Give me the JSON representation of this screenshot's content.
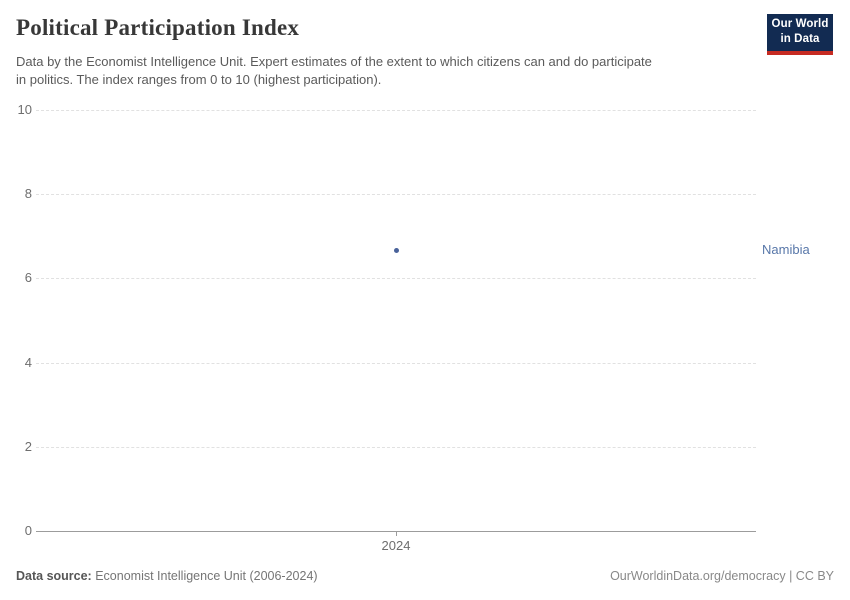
{
  "header": {
    "title": "Political Participation Index",
    "subtitle_lines": [
      "Data by the Economist Intelligence Unit. Expert estimates of the extent to which citizens can and do participate",
      "in politics. The index ranges from 0 to 10 (highest participation)."
    ],
    "logo": {
      "line1": "Our World",
      "line2": "in Data",
      "bg_color": "#122b52",
      "stripe_color": "#c62b22"
    }
  },
  "chart_data": {
    "type": "scatter",
    "title": "Political Participation Index",
    "xlabel": "",
    "ylabel": "",
    "ylim": [
      0,
      10
    ],
    "y_ticks": [
      0,
      2,
      4,
      6,
      8,
      10
    ],
    "x_ticks": [
      "2024"
    ],
    "grid": "horizontal-dashed",
    "legend_position": "right-of-point",
    "series": [
      {
        "name": "Namibia",
        "x": [
          2024
        ],
        "values": [
          6.67
        ],
        "color": "#49629a",
        "label_color": "#5877a9"
      }
    ]
  },
  "footer": {
    "datasource_label": "Data source:",
    "datasource_value": " Economist Intelligence Unit (2006-2024)",
    "credit": "OurWorldinData.org/democracy | CC BY"
  }
}
